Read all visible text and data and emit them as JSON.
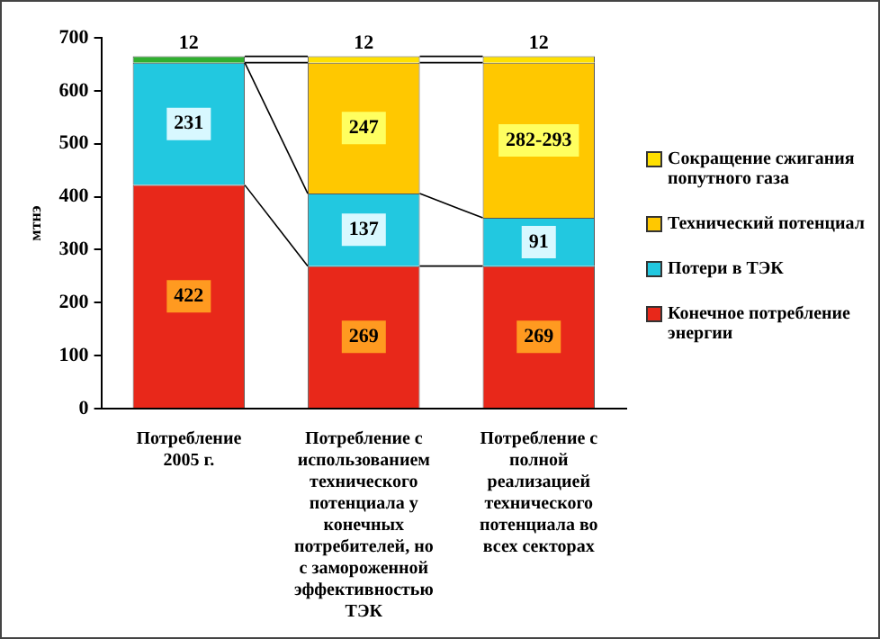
{
  "chart_data": {
    "type": "bar",
    "stacked": true,
    "ylabel": "мтнэ",
    "categories": [
      "Потребление 2005 г.",
      "Потребление с использованием технического потенциала у конечных потребителей, но с замороженной эффективностью ТЭК",
      "Потребление с полной реализацией технического потенциала во всех секторах"
    ],
    "series": [
      {
        "name": "Конечное потребление энергии",
        "color": "#e8281a",
        "values": [
          422,
          269,
          269
        ],
        "value_labels": [
          "422",
          "269",
          "269"
        ]
      },
      {
        "name": "Потери в ТЭК",
        "color": "#22c8e0",
        "values": [
          231,
          137,
          91
        ],
        "value_labels": [
          "231",
          "137",
          "91"
        ]
      },
      {
        "name": "Технический потенциал",
        "color": "#ffc800",
        "values": [
          0,
          247,
          293
        ],
        "value_labels": [
          null,
          "247",
          "282-293"
        ]
      },
      {
        "name": "Сокращение сжигания попутного газа",
        "color": "#ffe000",
        "colors": [
          "#30b030",
          "#ffe000",
          "#ffe000"
        ],
        "values": [
          12,
          12,
          12
        ],
        "value_labels": [
          "12",
          "12",
          "12"
        ]
      }
    ],
    "ylim": [
      0,
      700
    ],
    "yticks": [
      0,
      100,
      200,
      300,
      400,
      500,
      600,
      700
    ],
    "grid": false,
    "legend": "right"
  }
}
